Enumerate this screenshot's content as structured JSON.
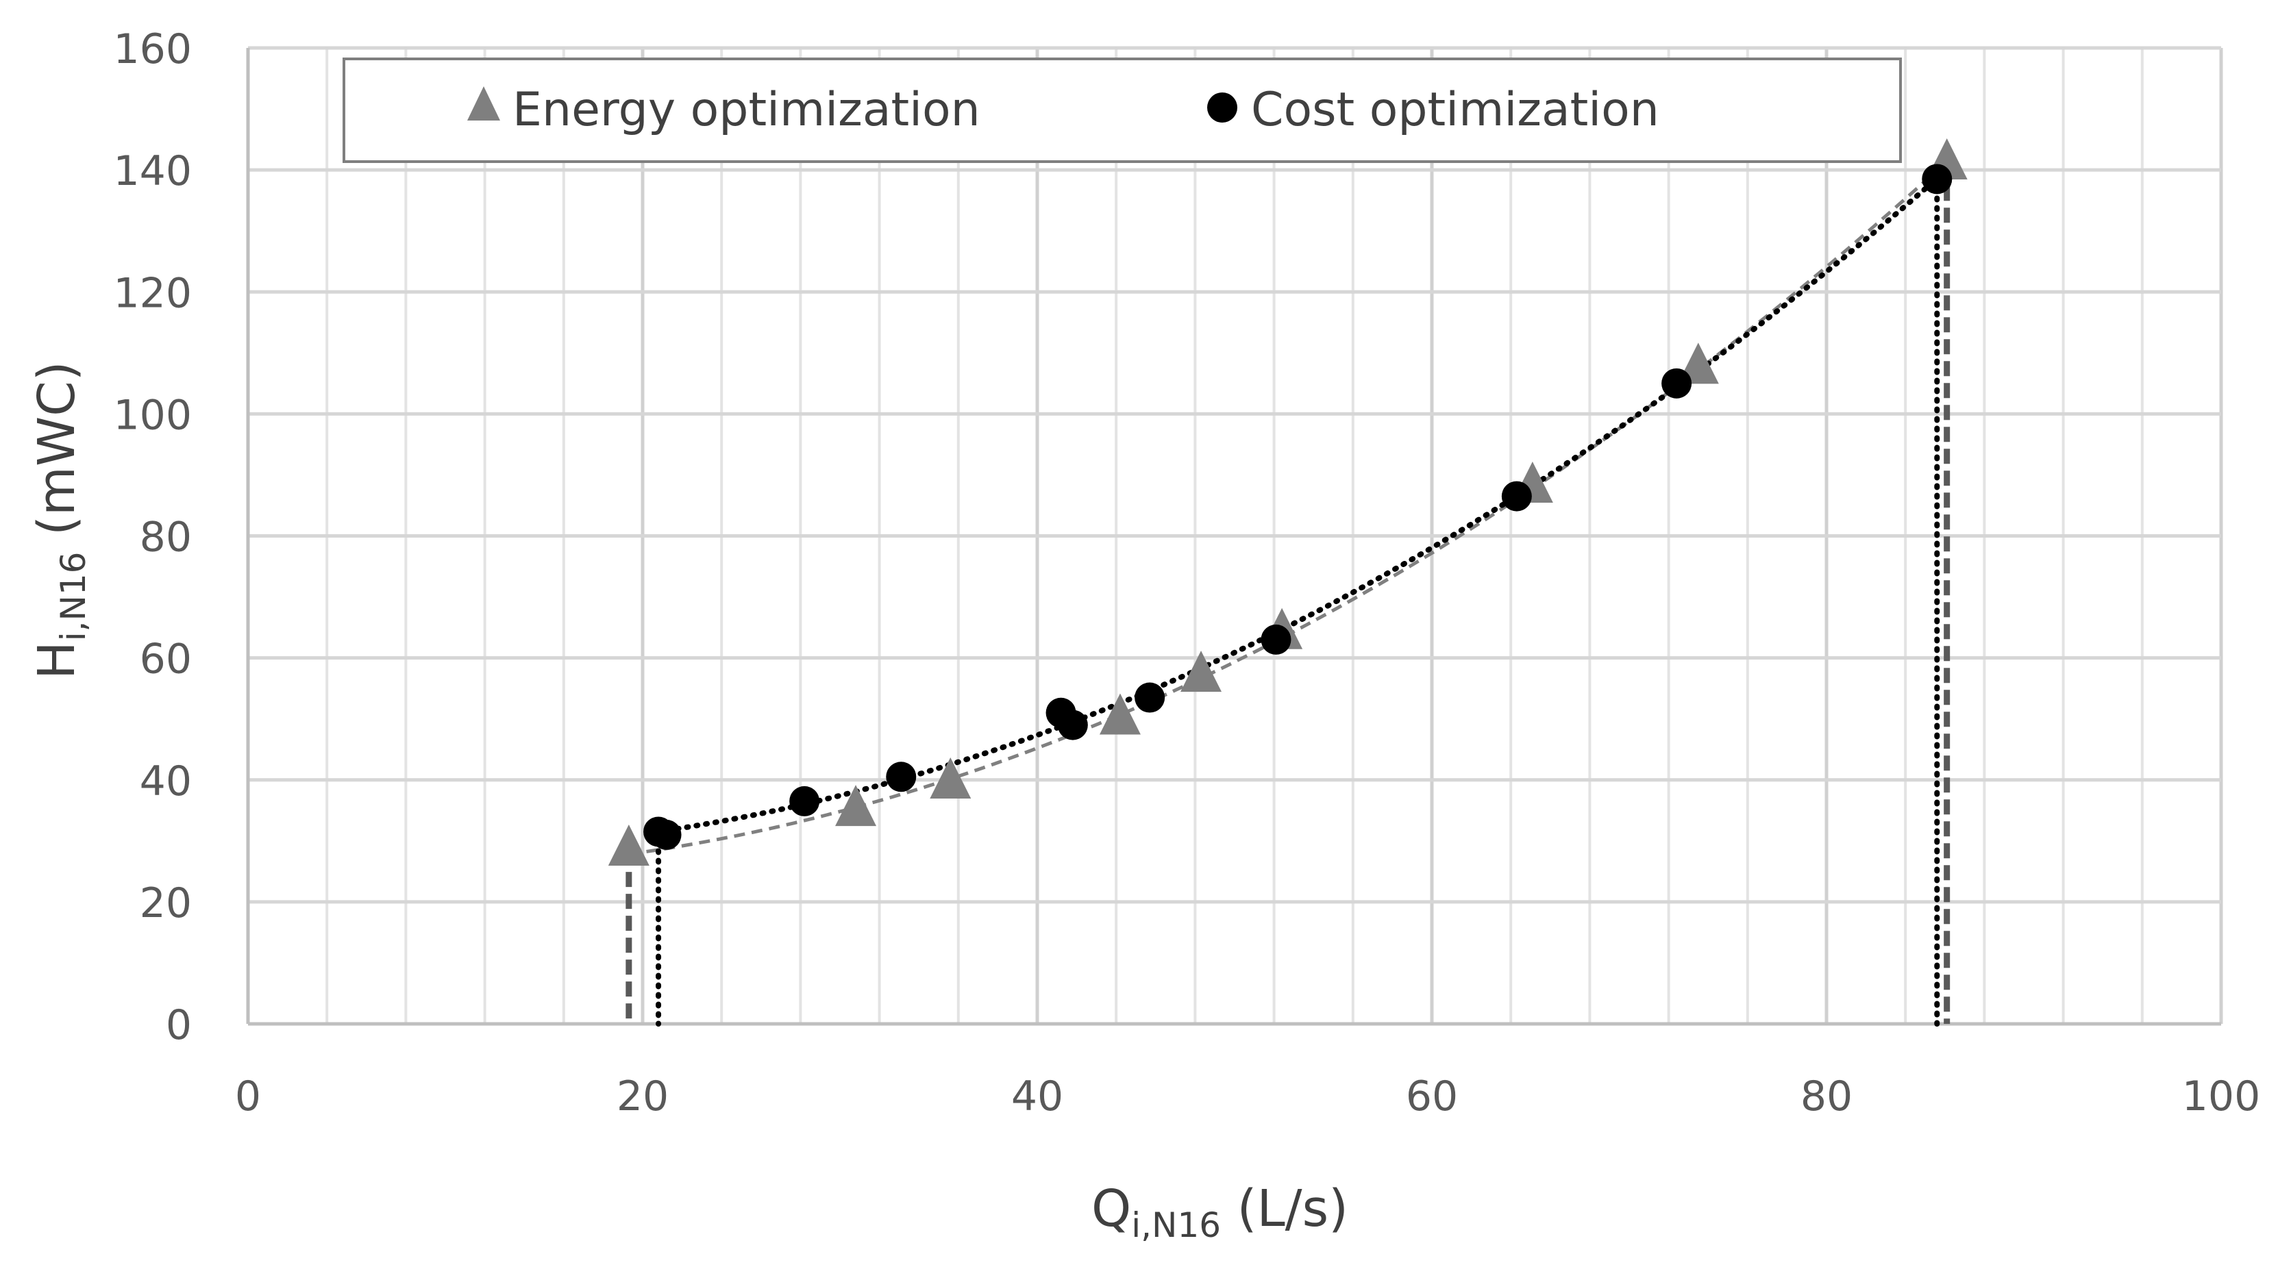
{
  "chart_data": {
    "type": "scatter",
    "title": "",
    "xlabel": {
      "main": "Q",
      "sub": "i,N16",
      "unit": " (L/s)"
    },
    "ylabel": {
      "main": "H",
      "sub": "i,N16",
      "unit": " (mWC)"
    },
    "xlim": [
      0,
      100
    ],
    "ylim": [
      0,
      160
    ],
    "x_major_ticks": [
      0,
      20,
      40,
      60,
      80,
      100
    ],
    "x_tick_labels": [
      "0",
      "20",
      "40",
      "60",
      "80",
      "100"
    ],
    "y_major_ticks": [
      0,
      20,
      40,
      60,
      80,
      100,
      120,
      140,
      160
    ],
    "y_tick_labels": [
      "0",
      "20",
      "40",
      "60",
      "80",
      "100",
      "120",
      "140",
      "160"
    ],
    "x_minor_step": 4,
    "grid": true,
    "legend_position": "top",
    "series": [
      {
        "name": "Energy optimization",
        "marker": "triangle",
        "color": "#7f7f7f",
        "line_color": "#808080",
        "line_style": "dashed",
        "x": [
          19.3,
          30.8,
          35.6,
          44.2,
          48.3,
          52.4,
          65.1,
          73.5,
          86.1
        ],
        "y": [
          28.5,
          35.0,
          39.5,
          50.0,
          57.0,
          64.0,
          88.0,
          107.5,
          141.0
        ],
        "drop_lines_x": [
          19.3,
          86.1
        ]
      },
      {
        "name": "Cost optimization",
        "marker": "circle",
        "color": "#000000",
        "line_color": "#000000",
        "line_style": "dotted",
        "x": [
          20.8,
          21.2,
          28.2,
          33.1,
          41.2,
          41.8,
          45.7,
          52.1,
          64.3,
          72.4,
          85.6
        ],
        "y": [
          31.5,
          31.0,
          36.5,
          40.5,
          51.0,
          49.0,
          53.5,
          63.0,
          86.5,
          105.0,
          138.5
        ],
        "drop_lines_x": [
          20.8,
          85.6
        ]
      }
    ]
  }
}
